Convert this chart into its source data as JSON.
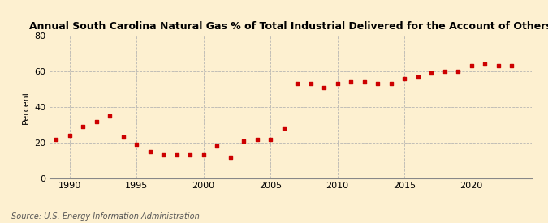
{
  "title": "Annual South Carolina Natural Gas % of Total Industrial Delivered for the Account of Others",
  "ylabel": "Percent",
  "source": "Source: U.S. Energy Information Administration",
  "background_color": "#fdf0d0",
  "plot_bg_color": "#fdf0d0",
  "marker_color": "#cc0000",
  "grid_color": "#b0b0b0",
  "xlim": [
    1988.5,
    2024.5
  ],
  "ylim": [
    0,
    80
  ],
  "yticks": [
    0,
    20,
    40,
    60,
    80
  ],
  "xticks": [
    1990,
    1995,
    2000,
    2005,
    2010,
    2015,
    2020
  ],
  "years": [
    1989,
    1990,
    1991,
    1992,
    1993,
    1994,
    1995,
    1996,
    1997,
    1998,
    1999,
    2000,
    2001,
    2002,
    2003,
    2004,
    2005,
    2006,
    2007,
    2008,
    2009,
    2010,
    2011,
    2012,
    2013,
    2014,
    2015,
    2016,
    2017,
    2018,
    2019,
    2020,
    2021,
    2022,
    2023
  ],
  "values": [
    22,
    24,
    29,
    32,
    35,
    23,
    19,
    15,
    13,
    13,
    13,
    13,
    18,
    12,
    21,
    22,
    22,
    28,
    53,
    53,
    51,
    53,
    54,
    54,
    53,
    53,
    56,
    57,
    59,
    60,
    60,
    63,
    64,
    63,
    63
  ]
}
